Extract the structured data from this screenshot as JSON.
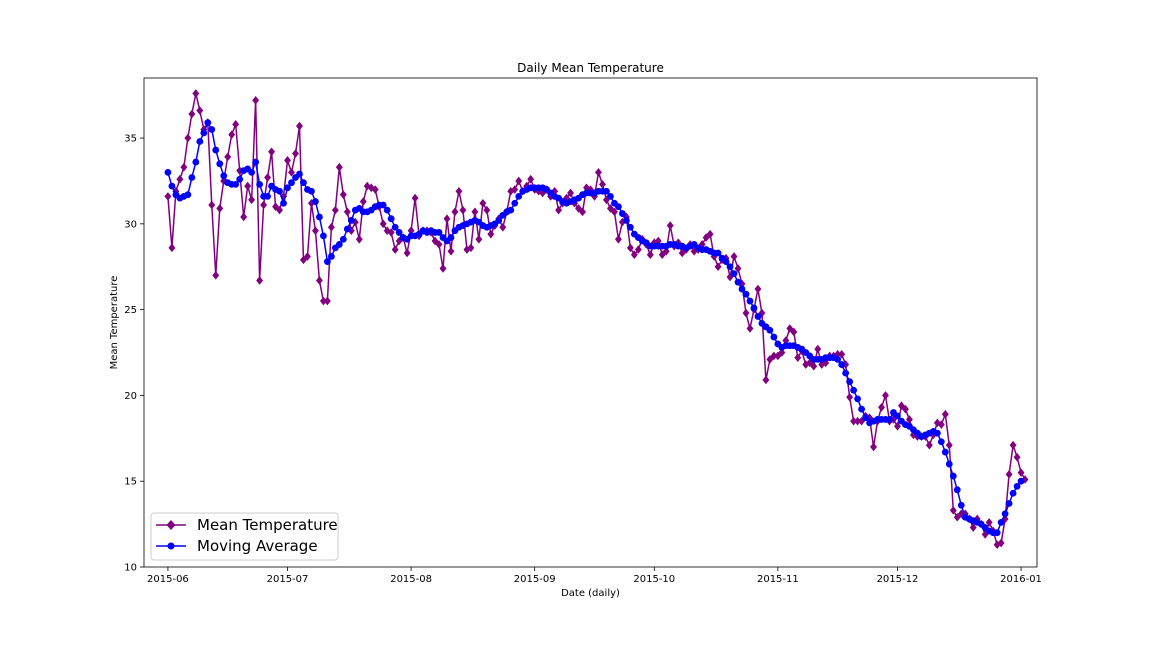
{
  "chart_data": {
    "type": "line",
    "title": "Daily Mean Temperature",
    "xlabel": "Date (daily)",
    "ylabel": "Mean Temperature",
    "x_start": "2015-06-01",
    "xlim": [
      "2015-05-26",
      "2016-01-05"
    ],
    "ylim": [
      10,
      38.5
    ],
    "x_ticks": [
      {
        "date": "2015-06-01",
        "label": "2015-06"
      },
      {
        "date": "2015-07-01",
        "label": "2015-07"
      },
      {
        "date": "2015-08-01",
        "label": "2015-08"
      },
      {
        "date": "2015-09-01",
        "label": "2015-09"
      },
      {
        "date": "2015-10-01",
        "label": "2015-10"
      },
      {
        "date": "2015-11-01",
        "label": "2015-11"
      },
      {
        "date": "2015-12-01",
        "label": "2015-12"
      },
      {
        "date": "2016-01-01",
        "label": "2016-01"
      }
    ],
    "y_ticks": [
      10,
      15,
      20,
      25,
      30,
      35
    ],
    "grid": false,
    "legend_position": "lower-left",
    "series": [
      {
        "name": "Mean Temperature",
        "color": "#800080",
        "marker": "diamond",
        "values": [
          31.6,
          28.6,
          31.9,
          32.6,
          33.3,
          35.0,
          36.4,
          37.6,
          36.6,
          35.5,
          35.9,
          31.1,
          27.0,
          30.9,
          32.5,
          33.9,
          35.2,
          35.8,
          33.1,
          30.4,
          32.2,
          31.4,
          37.2,
          26.7,
          31.1,
          32.7,
          34.2,
          31.0,
          30.8,
          31.6,
          33.7,
          33.0,
          34.1,
          35.7,
          27.9,
          28.1,
          31.2,
          29.6,
          26.7,
          25.5,
          25.5,
          29.8,
          30.8,
          33.3,
          31.7,
          30.7,
          29.6,
          30.1,
          29.1,
          31.3,
          32.2,
          32.1,
          32.0,
          31.0,
          30.0,
          29.6,
          29.5,
          28.5,
          29.0,
          29.2,
          28.3,
          29.6,
          31.5,
          29.3,
          29.6,
          29.6,
          29.5,
          29.0,
          28.8,
          27.4,
          30.3,
          28.4,
          30.7,
          31.9,
          30.8,
          28.5,
          28.6,
          30.7,
          29.1,
          31.2,
          30.8,
          29.4,
          29.9,
          30.3,
          29.8,
          30.7,
          31.9,
          32.0,
          32.5,
          31.9,
          32.2,
          32.6,
          32.0,
          31.9,
          31.8,
          32.0,
          31.6,
          31.9,
          30.8,
          31.2,
          31.5,
          31.8,
          31.2,
          30.9,
          30.7,
          32.1,
          32.0,
          31.6,
          33.0,
          32.3,
          31.4,
          30.9,
          30.7,
          29.1,
          30.1,
          30.4,
          28.6,
          28.2,
          28.5,
          29.1,
          28.8,
          28.2,
          28.9,
          29.0,
          28.2,
          28.4,
          29.9,
          28.7,
          28.9,
          28.3,
          28.5,
          28.8,
          28.4,
          28.5,
          28.8,
          29.2,
          29.4,
          28.1,
          27.5,
          27.9,
          28.0,
          26.9,
          28.1,
          27.4,
          26.5,
          24.8,
          23.9,
          25.0,
          26.2,
          24.8,
          20.9,
          22.1,
          22.3,
          22.3,
          22.5,
          23.2,
          23.9,
          23.7,
          22.2,
          22.6,
          21.8,
          21.9,
          21.7,
          22.7,
          21.8,
          21.9,
          22.3,
          22.3,
          22.4,
          22.4,
          21.8,
          19.9,
          18.5,
          18.5,
          18.5,
          18.8,
          18.7,
          17.0,
          18.5,
          19.3,
          20.0,
          18.5,
          18.6,
          18.2,
          19.4,
          19.2,
          18.6,
          17.7,
          17.6,
          17.6,
          17.6,
          17.1,
          17.7,
          18.4,
          18.3,
          18.9,
          17.1,
          13.3,
          12.9,
          13.1,
          13.1,
          12.8,
          12.3,
          12.8,
          12.5,
          11.9,
          12.6,
          12.1,
          11.3,
          11.4,
          12.8,
          15.4,
          17.1,
          16.4,
          15.5,
          15.1
        ]
      },
      {
        "name": "Moving Average",
        "color": "#0000ff",
        "marker": "circle",
        "values": [
          33.0,
          32.2,
          31.7,
          31.5,
          31.6,
          31.7,
          32.7,
          33.6,
          34.8,
          35.3,
          35.9,
          35.5,
          34.3,
          33.5,
          32.8,
          32.4,
          32.3,
          32.3,
          32.6,
          33.1,
          33.2,
          33.0,
          33.6,
          32.3,
          31.6,
          31.6,
          32.2,
          32.0,
          31.9,
          31.2,
          32.1,
          32.4,
          32.7,
          32.9,
          32.4,
          32.0,
          31.9,
          31.3,
          30.4,
          29.3,
          27.8,
          28.1,
          28.6,
          28.8,
          29.1,
          29.7,
          30.2,
          30.8,
          30.9,
          30.7,
          30.7,
          30.8,
          31.0,
          31.1,
          31.1,
          30.8,
          30.3,
          29.8,
          29.5,
          29.2,
          29.1,
          29.3,
          29.3,
          29.4,
          29.6,
          29.5,
          29.6,
          29.5,
          29.5,
          29.2,
          29.0,
          29.2,
          29.6,
          29.8,
          29.9,
          30.0,
          30.1,
          30.2,
          30.1,
          29.9,
          29.8,
          29.9,
          30.0,
          30.2,
          30.5,
          30.7,
          30.8,
          31.2,
          31.6,
          31.9,
          32.0,
          32.1,
          32.1,
          32.1,
          32.1,
          32.0,
          31.8,
          31.6,
          31.5,
          31.3,
          31.2,
          31.3,
          31.4,
          31.5,
          31.7,
          31.8,
          31.8,
          31.8,
          31.9,
          31.9,
          31.9,
          31.6,
          31.2,
          31.0,
          30.6,
          30.2,
          29.8,
          29.4,
          29.2,
          29.0,
          28.9,
          28.7,
          28.7,
          28.7,
          28.7,
          28.7,
          28.8,
          28.8,
          28.7,
          28.7,
          28.6,
          28.7,
          28.8,
          28.6,
          28.5,
          28.5,
          28.4,
          28.3,
          28.3,
          28.0,
          27.8,
          27.5,
          27.1,
          26.6,
          26.2,
          25.9,
          25.5,
          25.1,
          24.6,
          24.2,
          24.0,
          23.8,
          23.4,
          23.0,
          22.8,
          22.9,
          22.9,
          22.9,
          22.8,
          22.7,
          22.5,
          22.3,
          22.1,
          22.1,
          22.1,
          22.2,
          22.2,
          22.2,
          22.1,
          21.8,
          21.3,
          20.8,
          20.3,
          19.8,
          19.2,
          18.7,
          18.4,
          18.5,
          18.6,
          18.6,
          18.6,
          18.6,
          19.0,
          18.8,
          18.5,
          18.3,
          18.2,
          18.0,
          17.8,
          17.6,
          17.7,
          17.8,
          17.9,
          17.8,
          17.3,
          16.7,
          16.0,
          15.3,
          14.5,
          13.6,
          12.9,
          12.8,
          12.7,
          12.6,
          12.5,
          12.3,
          12.1,
          12.0,
          12.0,
          12.6,
          13.1,
          13.7,
          14.3,
          14.7,
          15.0
        ]
      }
    ]
  }
}
